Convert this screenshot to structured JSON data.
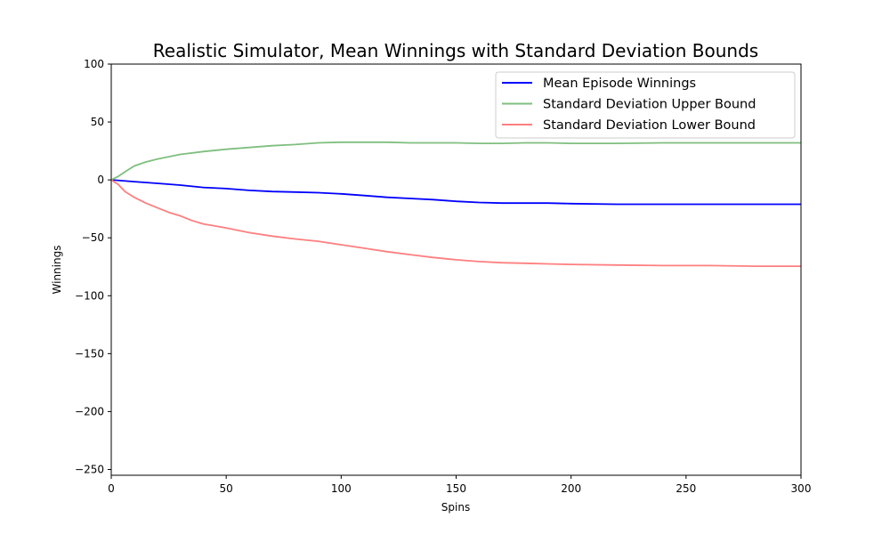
{
  "chart_data": {
    "type": "line",
    "title": "Realistic Simulator, Mean Winnings with Standard Deviation Bounds",
    "xlabel": "Spins",
    "ylabel": "Winnings",
    "xlim": [
      0,
      300
    ],
    "ylim": [
      -255,
      100
    ],
    "xticks": [
      0,
      50,
      100,
      150,
      200,
      250,
      300
    ],
    "yticks": [
      100,
      50,
      0,
      -50,
      -100,
      -150,
      -200,
      -250
    ],
    "grid": false,
    "legend_position": "upper right",
    "series": [
      {
        "name": "Mean Episode Winnings",
        "color": "#0000ff",
        "x": [
          0,
          10,
          20,
          30,
          40,
          50,
          60,
          70,
          80,
          90,
          100,
          110,
          120,
          130,
          140,
          150,
          160,
          170,
          180,
          190,
          200,
          220,
          240,
          260,
          280,
          300
        ],
        "values": [
          0,
          -1.5,
          -3,
          -4.5,
          -6.5,
          -7.5,
          -9,
          -10,
          -10.5,
          -11,
          -12,
          -13.5,
          -15,
          -16,
          -17,
          -18.5,
          -19.5,
          -20,
          -20,
          -20,
          -20.5,
          -21,
          -21,
          -21,
          -21,
          -21
        ]
      },
      {
        "name": "Standard Deviation Upper Bound",
        "color": "#7fbf7f",
        "x": [
          0,
          3,
          6,
          10,
          15,
          20,
          25,
          30,
          40,
          50,
          60,
          70,
          80,
          90,
          100,
          110,
          120,
          130,
          140,
          150,
          160,
          170,
          180,
          190,
          200,
          220,
          240,
          260,
          280,
          300
        ],
        "values": [
          0,
          3,
          7,
          12,
          15.5,
          18,
          20,
          22,
          24.5,
          26.5,
          28,
          29.5,
          30.5,
          32,
          32.5,
          32.5,
          32.5,
          32,
          32,
          32,
          31.5,
          31.5,
          32,
          32,
          31.5,
          31.5,
          32,
          32,
          32,
          32
        ]
      },
      {
        "name": "Standard Deviation Lower Bound",
        "color": "#ff7f7f",
        "x": [
          0,
          3,
          6,
          10,
          15,
          20,
          25,
          30,
          35,
          40,
          50,
          60,
          70,
          80,
          90,
          100,
          110,
          120,
          130,
          140,
          150,
          160,
          170,
          180,
          190,
          200,
          220,
          240,
          260,
          280,
          300
        ],
        "values": [
          0,
          -4,
          -10,
          -15,
          -20,
          -24,
          -28,
          -31,
          -35,
          -38,
          -41.5,
          -45.5,
          -48.5,
          -51,
          -53,
          -56,
          -59,
          -62,
          -64.5,
          -67,
          -69,
          -70.5,
          -71.5,
          -72,
          -72.5,
          -73,
          -73.5,
          -74,
          -74,
          -74.5,
          -74.5
        ]
      }
    ]
  }
}
